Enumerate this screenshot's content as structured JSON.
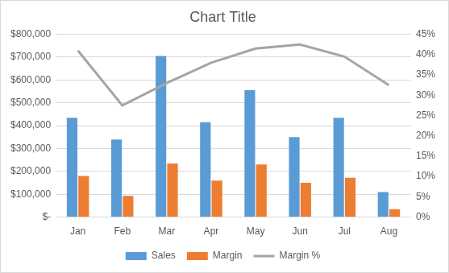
{
  "chart_data": {
    "type": "bar",
    "title": "Chart Title",
    "categories": [
      "Jan",
      "Feb",
      "Mar",
      "Apr",
      "May",
      "Jun",
      "Jul",
      "Aug"
    ],
    "series": [
      {
        "name": "Sales",
        "color": "#5b9bd5",
        "values": [
          435000,
          340000,
          705000,
          415000,
          555000,
          350000,
          435000,
          110000
        ]
      },
      {
        "name": "Margin",
        "color": "#ed7d31",
        "values": [
          180000,
          93000,
          235000,
          160000,
          230000,
          150000,
          172000,
          35000
        ]
      },
      {
        "name": "Margin %",
        "color": "#a5a5a5",
        "type": "line",
        "marker": "none",
        "axis": "y2",
        "values": [
          41,
          27.5,
          33,
          38,
          41.5,
          42.5,
          39.5,
          32.5
        ]
      }
    ],
    "ylim": [
      0,
      800000
    ],
    "yticks": [
      {
        "value": 0,
        "label": "$-"
      },
      {
        "value": 100000,
        "label": "$100,000"
      },
      {
        "value": 200000,
        "label": "$200,000"
      },
      {
        "value": 300000,
        "label": "$300,000"
      },
      {
        "value": 400000,
        "label": "$400,000"
      },
      {
        "value": 500000,
        "label": "$500,000"
      },
      {
        "value": 600000,
        "label": "$600,000"
      },
      {
        "value": 700000,
        "label": "$700,000"
      },
      {
        "value": 800000,
        "label": "$800,000"
      }
    ],
    "y2lim": [
      0,
      45
    ],
    "y2ticks": [
      {
        "value": 0,
        "label": "0%"
      },
      {
        "value": 5,
        "label": "5%"
      },
      {
        "value": 10,
        "label": "10%"
      },
      {
        "value": 15,
        "label": "15%"
      },
      {
        "value": 20,
        "label": "20%"
      },
      {
        "value": 25,
        "label": "25%"
      },
      {
        "value": 30,
        "label": "30%"
      },
      {
        "value": 35,
        "label": "35%"
      },
      {
        "value": 40,
        "label": "40%"
      },
      {
        "value": 45,
        "label": "45%"
      }
    ],
    "grid": true,
    "legend": "bottom"
  }
}
